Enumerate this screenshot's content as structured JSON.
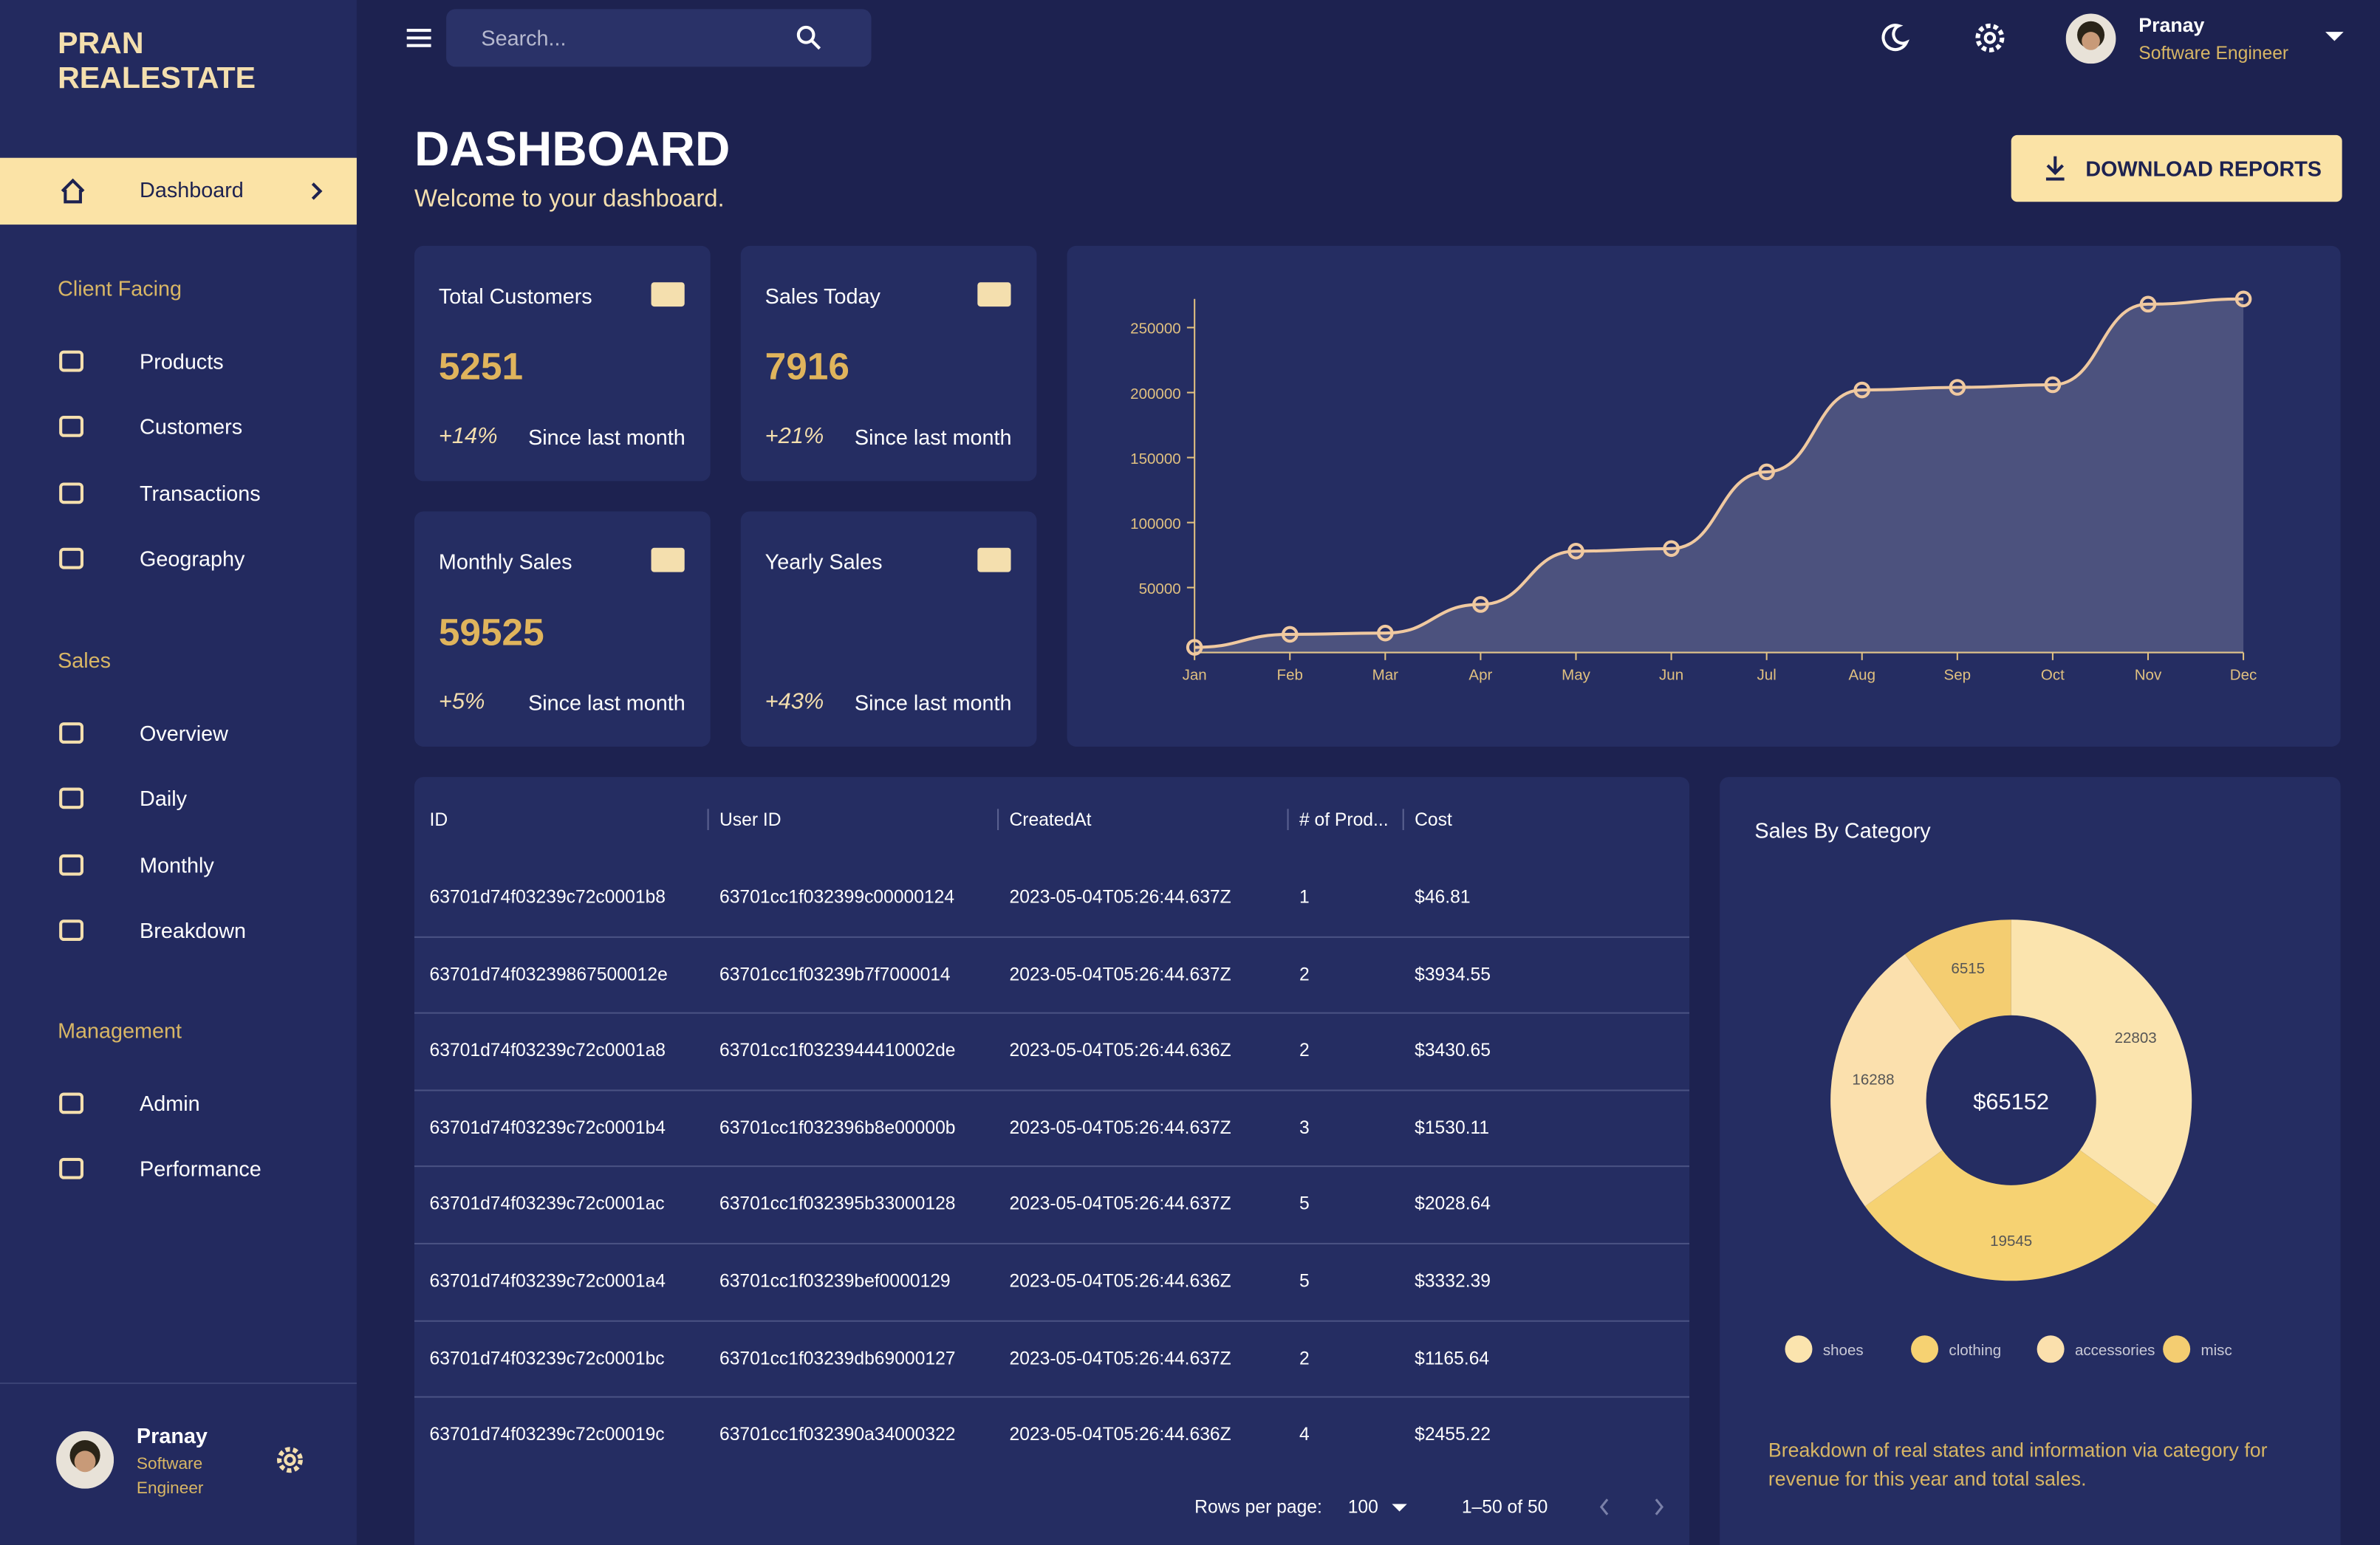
{
  "sidebar": {
    "brand": "PRAN REALESTATE",
    "active": "Dashboard",
    "sections": [
      {
        "title": "Client Facing",
        "items": [
          "Products",
          "Customers",
          "Transactions",
          "Geography"
        ]
      },
      {
        "title": "Sales",
        "items": [
          "Overview",
          "Daily",
          "Monthly",
          "Breakdown"
        ]
      },
      {
        "title": "Management",
        "items": [
          "Admin",
          "Performance"
        ]
      }
    ],
    "user": {
      "name": "Pranay",
      "role": "Software Engineer"
    }
  },
  "topbar": {
    "search_placeholder": "Search...",
    "user": {
      "name": "Pranay",
      "role": "Software Engineer"
    }
  },
  "header": {
    "title": "DASHBOARD",
    "subtitle": "Welcome to your dashboard.",
    "button": "DOWNLOAD REPORTS"
  },
  "stats": [
    {
      "title": "Total Customers",
      "value": "5251",
      "change": "+14%",
      "note": "Since last month"
    },
    {
      "title": "Sales Today",
      "value": "7916",
      "change": "+21%",
      "note": "Since last month"
    },
    {
      "title": "Monthly Sales",
      "value": "59525",
      "change": "+5%",
      "note": "Since last month"
    },
    {
      "title": "Yearly Sales",
      "change": "+43%",
      "note": "Since last month"
    }
  ],
  "chart_data": [
    {
      "type": "line",
      "categories": [
        "Jan",
        "Feb",
        "Mar",
        "Apr",
        "May",
        "Jun",
        "Jul",
        "Aug",
        "Sep",
        "Oct",
        "Nov",
        "Dec"
      ],
      "values": [
        4000,
        14000,
        15000,
        37000,
        78000,
        80000,
        139000,
        202000,
        204000,
        206000,
        268000,
        272000
      ],
      "color": "#f0c9a0",
      "ylim": [
        0,
        272000
      ],
      "yticks": [
        50000,
        100000,
        150000,
        200000,
        250000
      ]
    },
    {
      "type": "pie",
      "title": "Sales By Category",
      "center_label": "$65152",
      "categories": [
        "shoes",
        "clothing",
        "accessories",
        "misc"
      ],
      "values": [
        22803,
        19545,
        16288,
        6515
      ],
      "colors": [
        "#fbe4ae",
        "#f6d272",
        "#fbe0ad",
        "#f4cd71"
      ],
      "caption": "Breakdown of real states and information via category for revenue for this year and total sales."
    }
  ],
  "table": {
    "columns": [
      "ID",
      "User ID",
      "CreatedAt",
      "# of Prod...",
      "Cost"
    ],
    "rows": [
      [
        "63701d74f03239c72c0001b8",
        "63701cc1f032399c00000124",
        "2023-05-04T05:26:44.637Z",
        "1",
        "$46.81"
      ],
      [
        "63701d74f03239867500012e",
        "63701cc1f03239b7f7000014",
        "2023-05-04T05:26:44.637Z",
        "2",
        "$3934.55"
      ],
      [
        "63701d74f03239c72c0001a8",
        "63701cc1f0323944410002de",
        "2023-05-04T05:26:44.636Z",
        "2",
        "$3430.65"
      ],
      [
        "63701d74f03239c72c0001b4",
        "63701cc1f032396b8e00000b",
        "2023-05-04T05:26:44.637Z",
        "3",
        "$1530.11"
      ],
      [
        "63701d74f03239c72c0001ac",
        "63701cc1f032395b33000128",
        "2023-05-04T05:26:44.637Z",
        "5",
        "$2028.64"
      ],
      [
        "63701d74f03239c72c0001a4",
        "63701cc1f03239bef0000129",
        "2023-05-04T05:26:44.636Z",
        "5",
        "$3332.39"
      ],
      [
        "63701d74f03239c72c0001bc",
        "63701cc1f03239db69000127",
        "2023-05-04T05:26:44.637Z",
        "2",
        "$1165.64"
      ],
      [
        "63701d74f03239c72c00019c",
        "63701cc1f032390a34000322",
        "2023-05-04T05:26:44.636Z",
        "4",
        "$2455.22"
      ]
    ]
  },
  "pagination": {
    "label": "Rows per page:",
    "rows_per_page": "100",
    "range": "1–50 of 50"
  }
}
